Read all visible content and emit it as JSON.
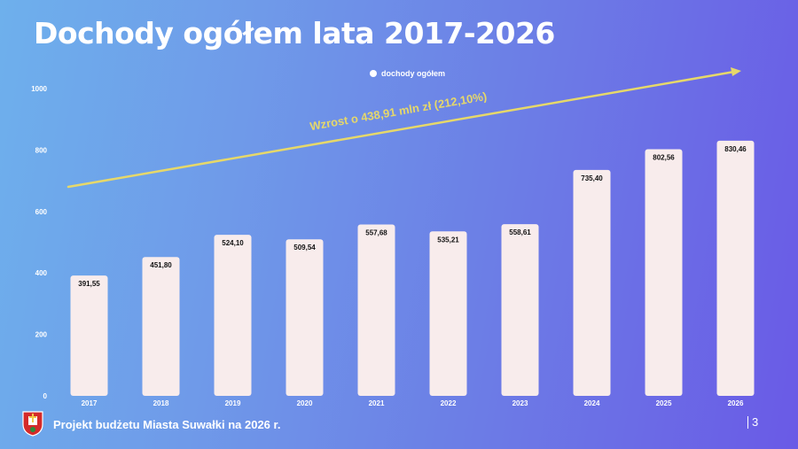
{
  "title": "Dochody ogółem lata 2017-2026",
  "legend": {
    "label": "dochody ogółem"
  },
  "chart_data": {
    "type": "bar",
    "categories": [
      "2017",
      "2018",
      "2019",
      "2020",
      "2021",
      "2022",
      "2023",
      "2024",
      "2025",
      "2026"
    ],
    "series": [
      {
        "name": "dochody ogółem",
        "values": [
          391.55,
          451.8,
          524.1,
          509.54,
          557.68,
          535.21,
          558.61,
          735.4,
          802.56,
          830.46
        ]
      }
    ],
    "value_labels": [
      "391,55",
      "451,80",
      "524,10",
      "509,54",
      "557,68",
      "535,21",
      "558,61",
      "735,40",
      "802,56",
      "830,46"
    ],
    "ylim": [
      0,
      1000
    ],
    "yticks": [
      "0",
      "200",
      "400",
      "600",
      "800",
      "1000"
    ],
    "grid": false,
    "legend_position": "top",
    "annotation": "Wzrost o 438,91 mln zł (212,10%)",
    "bar_color": "#f8ecec",
    "arrow_color": "#e6d86a"
  },
  "footer": {
    "text": "Projekt budżetu Miasta Suwałki na 2026 r.",
    "page": "3"
  }
}
